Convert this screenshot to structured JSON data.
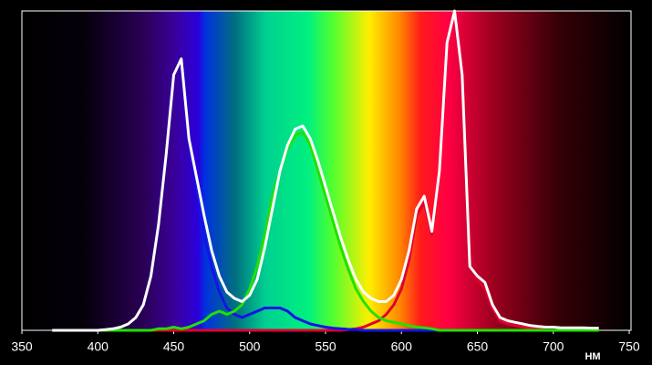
{
  "chart_data": {
    "type": "line",
    "x_label": "НМ",
    "x": [
      370,
      375,
      380,
      385,
      390,
      395,
      400,
      405,
      410,
      415,
      420,
      425,
      430,
      435,
      440,
      445,
      450,
      455,
      460,
      465,
      470,
      475,
      480,
      485,
      490,
      495,
      500,
      505,
      510,
      515,
      520,
      525,
      530,
      535,
      540,
      545,
      550,
      555,
      560,
      565,
      570,
      575,
      580,
      585,
      590,
      595,
      600,
      605,
      610,
      615,
      620,
      625,
      630,
      635,
      640,
      645,
      650,
      655,
      660,
      665,
      670,
      675,
      680,
      685,
      690,
      695,
      700,
      705,
      710,
      715,
      720,
      725,
      730
    ],
    "series": [
      {
        "color": "#ffffff",
        "values": [
          0,
          0,
          0,
          0,
          0,
          0,
          0,
          0.002,
          0.005,
          0.01,
          0.02,
          0.04,
          0.08,
          0.17,
          0.33,
          0.55,
          0.8,
          0.85,
          0.6,
          0.48,
          0.36,
          0.25,
          0.17,
          0.12,
          0.1,
          0.09,
          0.11,
          0.16,
          0.26,
          0.38,
          0.5,
          0.58,
          0.63,
          0.64,
          0.6,
          0.53,
          0.45,
          0.37,
          0.29,
          0.22,
          0.16,
          0.12,
          0.1,
          0.09,
          0.09,
          0.11,
          0.16,
          0.25,
          0.38,
          0.42,
          0.31,
          0.5,
          0.9,
          1.0,
          0.8,
          0.2,
          0.17,
          0.15,
          0.08,
          0.04,
          0.03,
          0.025,
          0.02,
          0.015,
          0.012,
          0.01,
          0.01,
          0.008,
          0.008,
          0.008,
          0.008,
          0.007,
          0.007
        ]
      },
      {
        "color": "#22e000",
        "values": [
          0,
          0,
          0,
          0,
          0,
          0,
          0,
          0,
          0,
          0,
          0,
          0,
          0,
          0,
          0.005,
          0.005,
          0.01,
          0.005,
          0.01,
          0.02,
          0.03,
          0.05,
          0.06,
          0.05,
          0.06,
          0.08,
          0.13,
          0.2,
          0.3,
          0.42,
          0.5,
          0.57,
          0.61,
          0.62,
          0.58,
          0.5,
          0.42,
          0.34,
          0.26,
          0.19,
          0.13,
          0.09,
          0.06,
          0.04,
          0.03,
          0.025,
          0.02,
          0.015,
          0.01,
          0.008,
          0.005,
          0,
          0,
          0,
          0,
          0,
          0,
          0,
          0,
          0,
          0,
          0,
          0,
          0,
          0,
          0,
          0,
          0,
          0,
          0,
          0,
          0,
          0
        ]
      },
      {
        "color": "#1414e6",
        "values": [
          0,
          0,
          0,
          0,
          0,
          0,
          0,
          0.002,
          0.005,
          0.01,
          0.02,
          0.04,
          0.08,
          0.17,
          0.33,
          0.55,
          0.8,
          0.85,
          0.6,
          0.45,
          0.3,
          0.2,
          0.12,
          0.07,
          0.05,
          0.04,
          0.05,
          0.06,
          0.07,
          0.07,
          0.07,
          0.06,
          0.04,
          0.03,
          0.02,
          0.015,
          0.01,
          0.007,
          0.005,
          0.003,
          0.002,
          0,
          0,
          0,
          0,
          0,
          0,
          0,
          0,
          0,
          0,
          0,
          0,
          0,
          0,
          0,
          0,
          0,
          0,
          0,
          0,
          0,
          0,
          0,
          0,
          0,
          0,
          0,
          0,
          0,
          0,
          0,
          0
        ]
      },
      {
        "color": "#e00030",
        "values": [
          0,
          0,
          0,
          0,
          0,
          0,
          0,
          0,
          0,
          0,
          0,
          0,
          0,
          0,
          0,
          0,
          0,
          0,
          0,
          0,
          0,
          0,
          0,
          0,
          0,
          0,
          0,
          0,
          0,
          0,
          0,
          0,
          0,
          0,
          0,
          0,
          0,
          0,
          0,
          0.002,
          0.005,
          0.01,
          0.02,
          0.03,
          0.05,
          0.08,
          0.13,
          0.22,
          0.36,
          0.4,
          0.3,
          0.5,
          0.9,
          1.0,
          0.8,
          0.2,
          0.16,
          0.13,
          0.07,
          0.03,
          0.02,
          0.015,
          0.01,
          0.008,
          0.005,
          0,
          0,
          0,
          0,
          0,
          0,
          0,
          0
        ]
      }
    ],
    "xlim": [
      350,
      750
    ],
    "xticks": [
      350,
      400,
      450,
      500,
      550,
      600,
      650,
      700,
      750
    ],
    "ylim": [
      0,
      1
    ]
  }
}
